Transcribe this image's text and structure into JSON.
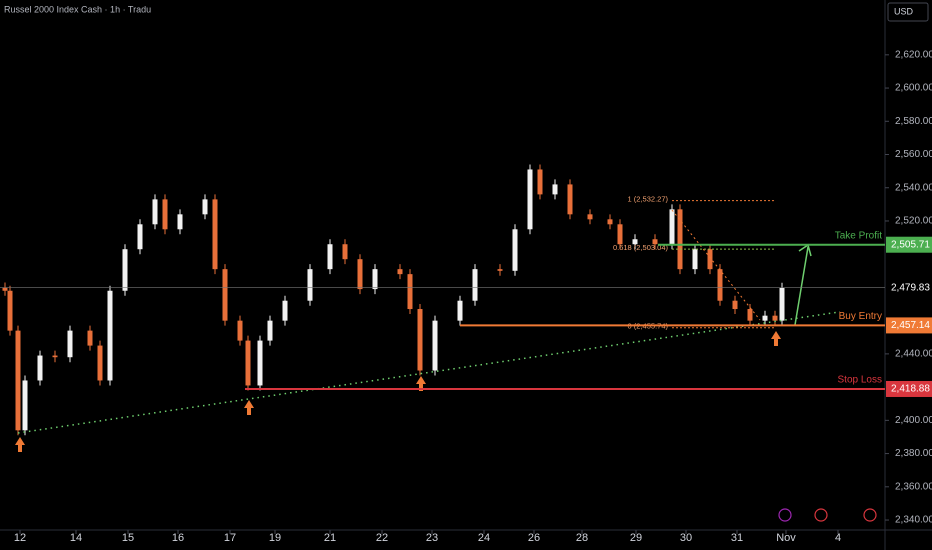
{
  "chart_data": {
    "type": "candlestick",
    "title": "Russel 2000 Index Cash · 1h · Tradu",
    "currency": "USD",
    "xlim": [
      0,
      177
    ],
    "ylim": [
      2334,
      2653
    ],
    "xticks": [
      {
        "value": 4,
        "label": "12"
      },
      {
        "value": 15.2,
        "label": "14"
      },
      {
        "value": 25.6,
        "label": "15"
      },
      {
        "value": 35.6,
        "label": "16"
      },
      {
        "value": 46,
        "label": "17"
      },
      {
        "value": 55,
        "label": "19"
      },
      {
        "value": 66,
        "label": "21"
      },
      {
        "value": 76.4,
        "label": "22"
      },
      {
        "value": 86.4,
        "label": "23"
      },
      {
        "value": 96.8,
        "label": "24"
      },
      {
        "value": 106.8,
        "label": "26"
      },
      {
        "value": 116.4,
        "label": "28"
      },
      {
        "value": 127.2,
        "label": "29"
      },
      {
        "value": 137.2,
        "label": "30"
      },
      {
        "value": 147.4,
        "label": "31"
      },
      {
        "value": 157.2,
        "label": "Nov"
      },
      {
        "value": 167.6,
        "label": "4"
      }
    ],
    "yticks": [
      {
        "value": 2340,
        "label": "2,340.00"
      },
      {
        "value": 2360,
        "label": "2,360.00"
      },
      {
        "value": 2380,
        "label": "2,380.00"
      },
      {
        "value": 2400,
        "label": "2,400.00"
      },
      {
        "value": 2440,
        "label": "2,440.00"
      },
      {
        "value": 2520,
        "label": "2,520.00"
      },
      {
        "value": 2540,
        "label": "2,540.00"
      },
      {
        "value": 2560,
        "label": "2,560.00"
      },
      {
        "value": 2580,
        "label": "2,580.00"
      },
      {
        "value": 2600,
        "label": "2,600.00"
      },
      {
        "value": 2620,
        "label": "2,620.00"
      }
    ],
    "up_color": "#f2f2f2",
    "down_color": "#e8703a",
    "series": [
      {
        "x": [
          1,
          2,
          3.6,
          5,
          8,
          11,
          14,
          18,
          20,
          22,
          25,
          28,
          31,
          33,
          36,
          41,
          43,
          45,
          48,
          49.6,
          52,
          54,
          57,
          62,
          66,
          69,
          72,
          75,
          80,
          82,
          84,
          87,
          92,
          95,
          100,
          103,
          106,
          108,
          111,
          114,
          118,
          122,
          124,
          127,
          131,
          134.4,
          136,
          139,
          142,
          144,
          147,
          150,
          153,
          155,
          156.4
        ],
        "open": [
          2480,
          2478,
          2454,
          2394,
          2424,
          2439,
          2438,
          2454,
          2445,
          2424,
          2478,
          2503,
          2518,
          2533,
          2515,
          2524,
          2533,
          2491,
          2460,
          2448,
          2421,
          2448,
          2460,
          2472,
          2491,
          2506,
          2497,
          2479,
          2491,
          2488,
          2467,
          2430,
          2460,
          2472,
          2491,
          2490,
          2515,
          2551,
          2536,
          2542,
          2524,
          2521,
          2518,
          2506,
          2509,
          2506,
          2527,
          2491,
          2503,
          2491,
          2472,
          2467,
          2460,
          2463,
          2460
        ],
        "high": [
          2483,
          2481,
          2457,
          2427,
          2442,
          2442,
          2457,
          2457,
          2448,
          2481,
          2506,
          2521,
          2536,
          2536,
          2527,
          2536,
          2536,
          2494,
          2463,
          2451,
          2451,
          2463,
          2475,
          2494,
          2509,
          2509,
          2500,
          2494,
          2494,
          2491,
          2470,
          2463,
          2475,
          2494,
          2494,
          2518,
          2554,
          2554,
          2545,
          2545,
          2527,
          2524,
          2521,
          2512,
          2512,
          2530,
          2530,
          2506,
          2506,
          2494,
          2475,
          2470,
          2466,
          2466,
          2482.8
        ],
        "low": [
          2475,
          2451,
          2391,
          2391,
          2421,
          2435,
          2435,
          2442,
          2421,
          2421,
          2475,
          2500,
          2515,
          2512,
          2512,
          2521,
          2488,
          2457,
          2445,
          2418,
          2418,
          2445,
          2457,
          2469,
          2488,
          2494,
          2476,
          2476,
          2485,
          2464,
          2427,
          2427,
          2457,
          2469,
          2487,
          2487,
          2512,
          2533,
          2533,
          2521,
          2518,
          2515,
          2503,
          2503,
          2503,
          2503,
          2488,
          2488,
          2488,
          2469,
          2464,
          2457,
          2457,
          2457,
          2457
        ],
        "close": [
          2478,
          2454,
          2394,
          2424,
          2439,
          2438,
          2454,
          2445,
          2424,
          2478,
          2503,
          2518,
          2533,
          2515,
          2524,
          2533,
          2491,
          2460,
          2448,
          2421,
          2448,
          2460,
          2472,
          2491,
          2506,
          2497,
          2479,
          2491,
          2488,
          2467,
          2430,
          2460,
          2472,
          2491,
          2490,
          2515,
          2551,
          2536,
          2542,
          2524,
          2521,
          2518,
          2506,
          2509,
          2506,
          2527,
          2491,
          2503,
          2491,
          2472,
          2467,
          2460,
          2463,
          2460,
          2479.8
        ]
      }
    ],
    "levels": [
      {
        "name": "Take Profit",
        "value": 2505.71,
        "label": "2,505.71",
        "color": "#4caf50",
        "x0": 131.6
      },
      {
        "name": "Buy Entry",
        "value": 2457.14,
        "label": "2,457.14",
        "color": "#f07a35",
        "x0": 92
      },
      {
        "name": "Stop Loss",
        "value": 2418.88,
        "label": "2,418.88",
        "color": "#d9363e",
        "x0": 49
      }
    ],
    "last_price": {
      "value": 2479.83,
      "label": "2,479.83"
    },
    "fib": [
      {
        "label": "1 (2,532.27)",
        "value": 2532.27
      },
      {
        "label": "0.618 (2,503.04)",
        "value": 2503.04
      },
      {
        "label": "0 (2,455.74)",
        "value": 2455.74
      }
    ],
    "trendline": {
      "x": [
        3.6,
        168
      ],
      "values": [
        2392.4,
        2465.3
      ],
      "color": "#6fcf6f"
    }
  }
}
